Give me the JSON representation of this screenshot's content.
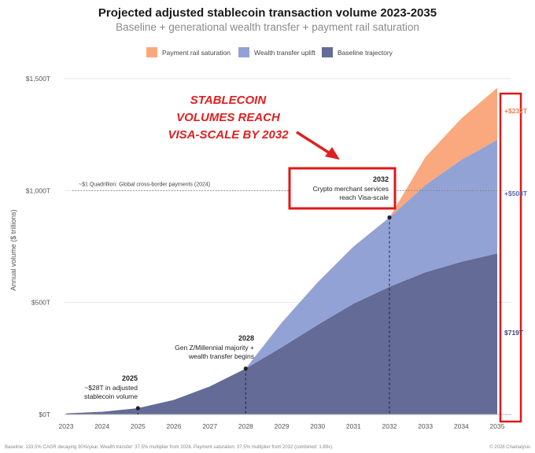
{
  "chart_data": {
    "type": "area",
    "title": "Projected adjusted stablecoin transaction volume 2023-2035",
    "subtitle": "Baseline + generational wealth transfer + payment rail saturation",
    "ylabel": "Annual volume ($ trillions)",
    "xlabel": "",
    "ylim": [
      0,
      1500
    ],
    "y_ticks": [
      {
        "value": 0,
        "label": "$0T"
      },
      {
        "value": 500,
        "label": "$500T"
      },
      {
        "value": 1000,
        "label": "$1,000T"
      },
      {
        "value": 1500,
        "label": "$1,500T"
      }
    ],
    "x": [
      "2023",
      "2024",
      "2025",
      "2026",
      "2027",
      "2028",
      "2029",
      "2030",
      "2031",
      "2032",
      "2033",
      "2034",
      "2035"
    ],
    "legend_position": "top",
    "grid": true,
    "series": [
      {
        "name": "Baseline trajectory",
        "color": "#636b96",
        "values": [
          5,
          12,
          28,
          65,
          125,
          205,
          300,
          400,
          495,
          570,
          635,
          682,
          719
        ]
      },
      {
        "name": "Wealth transfer uplift",
        "color": "#93a2d4",
        "values": [
          0,
          0,
          0,
          0,
          0,
          0,
          110,
          190,
          255,
          310,
          390,
          455,
          508
        ]
      },
      {
        "name": "Payment rail saturation",
        "color": "#f9a97d",
        "values": [
          0,
          0,
          0,
          0,
          0,
          0,
          0,
          0,
          0,
          0,
          125,
          185,
          232
        ]
      }
    ],
    "legend_order": [
      2,
      1,
      0
    ],
    "reference_line": {
      "value": 1000,
      "label": "~$1 Quadrillion: Global cross-border payments (2024)"
    },
    "milestones": [
      {
        "year": "2025",
        "value": 28,
        "title": "2025",
        "lines": [
          "~$28T in adjusted",
          "stablecoin volume"
        ]
      },
      {
        "year": "2028",
        "value": 205,
        "title": "2028",
        "lines": [
          "Gen Z/Millennial majority +",
          "wealth transfer begins"
        ]
      },
      {
        "year": "2032",
        "value": 880,
        "title": "2032",
        "lines": [
          "Crypto merchant services",
          "reach Visa-scale"
        ]
      }
    ],
    "end_labels": [
      {
        "text": "+$232T",
        "color": "#ee7a4a"
      },
      {
        "text": "+$508T",
        "color": "#5a68b6"
      },
      {
        "text": "$719T",
        "color": "#3a4378"
      }
    ],
    "callout": [
      "STABLECOIN",
      "VOLUMES REACH",
      "VISA-SCALE BY 2032"
    ]
  },
  "footer": {
    "left": "Baseline: 133.5% CAGR decaying 30%/year. Wealth transfer: 37.5% multiplier from 2028. Payment saturation: 37.5% multiplier from 2032 (combined: 1.89x).",
    "right": "© 2026 Chainalysis"
  }
}
